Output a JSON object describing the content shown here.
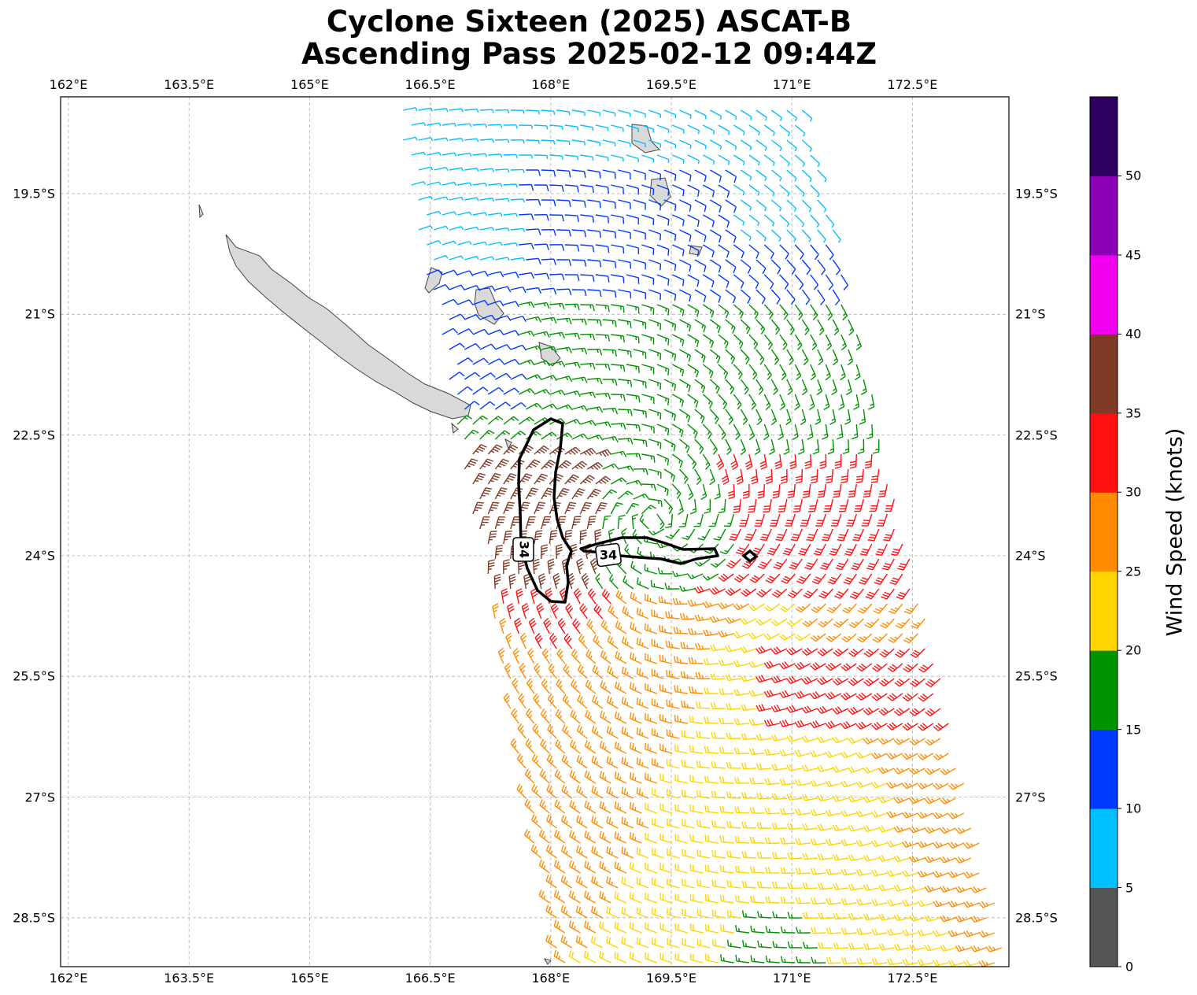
{
  "title_line1": "Cyclone Sixteen (2025) ASCAT-B",
  "title_line2": "Ascending Pass 2025-02-12 09:44Z",
  "lon_ticks": [
    "162°E",
    "163.5°E",
    "165°E",
    "166.5°E",
    "168°E",
    "169.5°E",
    "171°E",
    "172.5°E"
  ],
  "lat_ticks": [
    "19.5°S",
    "21°S",
    "22.5°S",
    "24°S",
    "25.5°S",
    "27°S",
    "28.5°S"
  ],
  "contour_labels": [
    "34",
    "34"
  ],
  "colorbar": {
    "title": "Wind Speed (knots)",
    "tick_labels": [
      "0",
      "5",
      "10",
      "15",
      "20",
      "25",
      "30",
      "35",
      "40",
      "45",
      "50"
    ],
    "colors": [
      "#555555",
      "#00bfff",
      "#0038ff",
      "#009300",
      "#ffd400",
      "#ff8c00",
      "#ff1010",
      "#7f3a28",
      "#f000ee",
      "#8a00b5",
      "#2d005f"
    ]
  },
  "colors": {
    "grid": "#b0b0b0",
    "land": "#d9d9d9",
    "coast": "#444444",
    "contour": "#000000"
  }
}
